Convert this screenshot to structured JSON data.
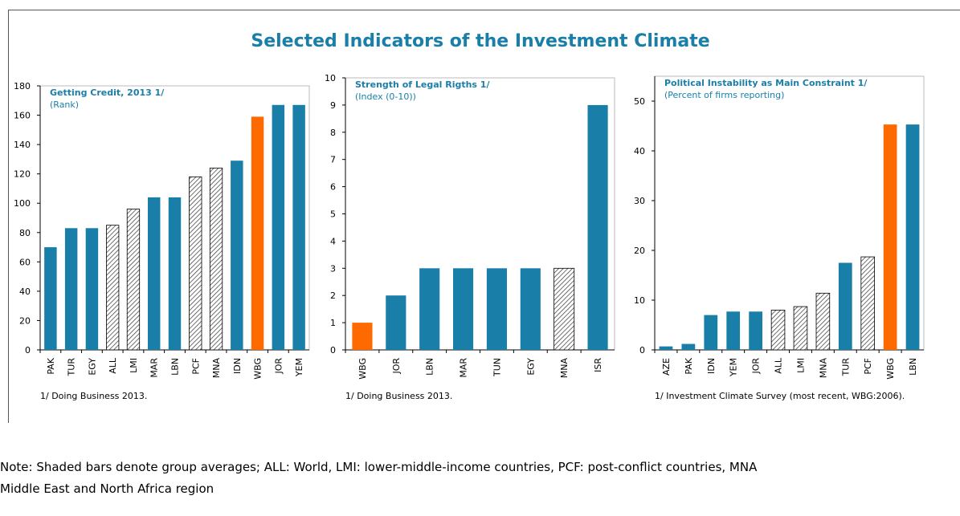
{
  "title": "Selected Indicators of the Investment Climate",
  "note": [
    "Note: Shaded bars denote group averages; ALL: World, LMI: lower-middle-income countries, PCF: post-conflict countries, MNA",
    "Middle East and North Africa region"
  ],
  "chart_data": [
    {
      "type": "bar",
      "title": "Getting Credit, 2013 1/",
      "subtitle": "(Rank)",
      "categories": [
        "PAK",
        "TUR",
        "EGY",
        "ALL",
        "LMI",
        "MAR",
        "LBN",
        "PCF",
        "MNA",
        "IDN",
        "WBG",
        "JOR",
        "YEM"
      ],
      "values": [
        70,
        83,
        83,
        85,
        96,
        104,
        104,
        118,
        124,
        129,
        159,
        167,
        167
      ],
      "colors": [
        "#1a7fa8",
        "#1a7fa8",
        "#1a7fa8",
        "hatch",
        "hatch",
        "#1a7fa8",
        "#1a7fa8",
        "hatch",
        "hatch",
        "#1a7fa8",
        "#ff6a00",
        "#1a7fa8",
        "#1a7fa8"
      ],
      "ylim": [
        0,
        180
      ],
      "yticks": [
        0,
        20,
        40,
        60,
        80,
        100,
        120,
        140,
        160,
        180
      ],
      "footnote": "1/ Doing Business 2013."
    },
    {
      "type": "bar",
      "title": "Strength of Legal Rigths 1/",
      "subtitle": "(Index (0-10))",
      "categories": [
        "WBG",
        "JOR",
        "LBN",
        "MAR",
        "TUN",
        "EGY",
        "MNA",
        "ISR"
      ],
      "values": [
        1,
        2,
        3,
        3,
        3,
        3,
        3,
        9
      ],
      "colors": [
        "#ff6a00",
        "#1a7fa8",
        "#1a7fa8",
        "#1a7fa8",
        "#1a7fa8",
        "#1a7fa8",
        "hatch",
        "#1a7fa8"
      ],
      "ylim": [
        0,
        10
      ],
      "yticks": [
        0,
        1,
        2,
        3,
        4,
        5,
        6,
        7,
        8,
        9,
        10
      ],
      "footnote": "1/ Doing Business 2013."
    },
    {
      "type": "bar",
      "title": "Political Instability as Main Constraint 1/",
      "subtitle": "(Percent of firms reporting)",
      "categories": [
        "AZE",
        "PAK",
        "IDN",
        "YEM",
        "JOR",
        "ALL",
        "LMI",
        "MNA",
        "TUR",
        "PCF",
        "WBG",
        "LBN"
      ],
      "values": [
        0.7,
        1.2,
        7,
        7.7,
        7.7,
        8,
        8.7,
        11.4,
        17.5,
        18.7,
        45.3,
        45.3
      ],
      "colors": [
        "#1a7fa8",
        "#1a7fa8",
        "#1a7fa8",
        "#1a7fa8",
        "#1a7fa8",
        "hatch",
        "hatch",
        "hatch",
        "#1a7fa8",
        "hatch",
        "#ff6a00",
        "#1a7fa8"
      ],
      "ylim": [
        0,
        55
      ],
      "yticks": [
        0,
        10,
        20,
        30,
        40,
        50
      ],
      "footnote": "1/  Investment Climate Survey (most recent, WBG:2006)."
    }
  ]
}
